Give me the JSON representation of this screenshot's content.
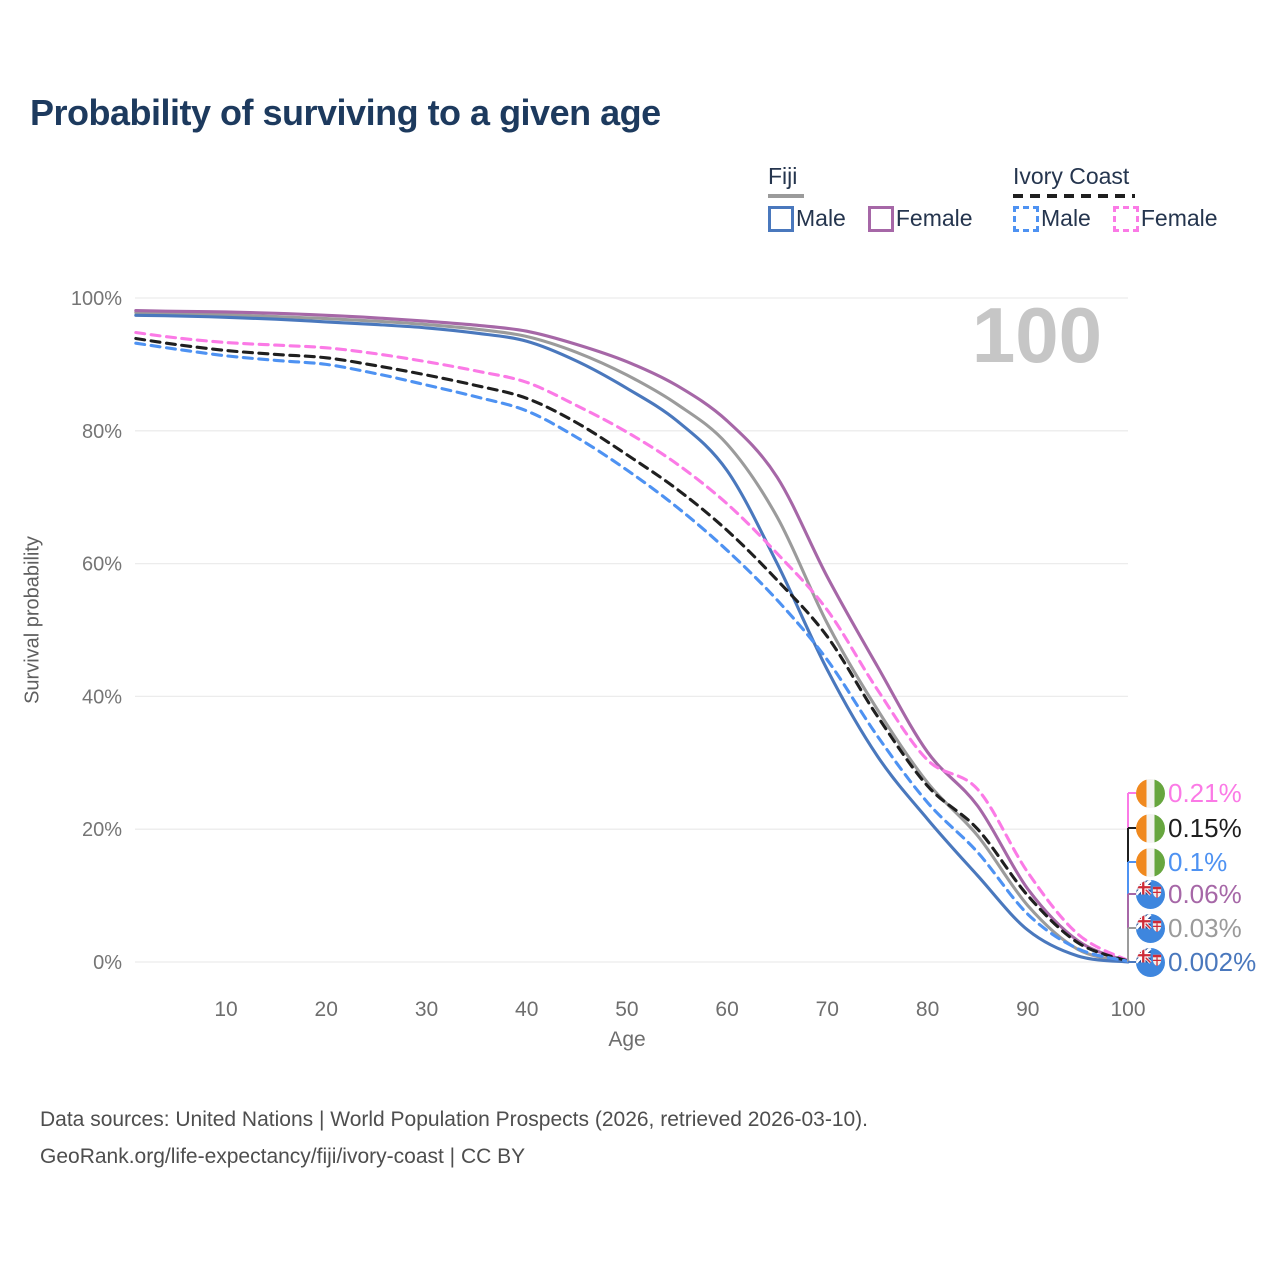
{
  "title": "Probability of surviving to a given age",
  "watermark": "100",
  "legend": {
    "fiji": {
      "label": "Fiji",
      "male": "Male",
      "female": "Female"
    },
    "ivory_coast": {
      "label": "Ivory Coast",
      "male": "Male",
      "female": "Female"
    }
  },
  "end_labels": [
    {
      "country": "Ivory Coast",
      "series": "ic_female",
      "flag": "ivory-coast",
      "value": "0.21%",
      "color": "#fb7ae6"
    },
    {
      "country": "Ivory Coast",
      "series": "ic_all",
      "flag": "ivory-coast",
      "value": "0.15%",
      "color": "#1f1f1f"
    },
    {
      "country": "Ivory Coast",
      "series": "ic_male",
      "flag": "ivory-coast",
      "value": "0.1%",
      "color": "#4e92f2"
    },
    {
      "country": "Fiji",
      "series": "fiji_female",
      "flag": "fiji",
      "value": "0.06%",
      "color": "#a667a7"
    },
    {
      "country": "Fiji",
      "series": "fiji_all",
      "flag": "fiji",
      "value": "0.03%",
      "color": "#9b9b9b"
    },
    {
      "country": "Fiji",
      "series": "fiji_male",
      "flag": "fiji",
      "value": "0.002%",
      "color": "#4a78bd"
    }
  ],
  "footer": {
    "line1": "Data sources: United Nations | World Population Prospects (2026, retrieved 2026-03-10).",
    "line2": "GeoRank.org/life-expectancy/fiji/ivory-coast | CC BY"
  },
  "chart_data": {
    "type": "line",
    "title": "Probability of surviving to a given age",
    "xlabel": "Age",
    "ylabel": "Survival probability",
    "xlim": [
      0,
      100
    ],
    "ylim": [
      0,
      100
    ],
    "grid": "horizontal-only",
    "legend_position": "top-right",
    "hover_age": 100,
    "x_ticks": [
      10,
      20,
      30,
      40,
      50,
      60,
      70,
      80,
      90,
      100
    ],
    "y_ticks": [
      100,
      80,
      60,
      40,
      20,
      0
    ],
    "y_tick_suffix": "%",
    "ages": [
      1,
      5,
      10,
      15,
      20,
      25,
      30,
      35,
      40,
      45,
      50,
      55,
      60,
      65,
      70,
      75,
      80,
      85,
      90,
      95,
      100
    ],
    "series": [
      {
        "id": "fiji_all",
        "name": "Fiji (both sexes)",
        "country": "Fiji",
        "sex": "All",
        "color": "#9b9b9b",
        "dashed": false,
        "values": [
          97.8,
          97.7,
          97.5,
          97.2,
          96.9,
          96.5,
          96.0,
          95.3,
          94.2,
          91.8,
          88.4,
          84.0,
          78.0,
          67.0,
          51.0,
          38.0,
          27.0,
          19.0,
          8.5,
          1.9,
          0.03
        ]
      },
      {
        "id": "fiji_female",
        "name": "Fiji Female",
        "country": "Fiji",
        "sex": "Female",
        "color": "#a667a7",
        "dashed": false,
        "values": [
          98.1,
          98.0,
          97.9,
          97.7,
          97.4,
          97.0,
          96.5,
          95.9,
          95.0,
          93.0,
          90.4,
          86.8,
          81.5,
          73.0,
          58.0,
          44.5,
          31.6,
          23.5,
          11.0,
          3.2,
          0.06
        ]
      },
      {
        "id": "fiji_male",
        "name": "Fiji Male",
        "country": "Fiji",
        "sex": "Male",
        "color": "#4a78bd",
        "dashed": false,
        "values": [
          97.4,
          97.3,
          97.1,
          96.8,
          96.4,
          96.0,
          95.5,
          94.7,
          93.5,
          90.5,
          86.4,
          81.5,
          74.0,
          60.0,
          44.0,
          31.0,
          21.5,
          13.0,
          4.8,
          0.9,
          0.002
        ]
      },
      {
        "id": "ic_female",
        "name": "Ivory Coast Female",
        "country": "Ivory Coast",
        "sex": "Female",
        "color": "#fb7ae6",
        "dashed": true,
        "values": [
          94.8,
          94.0,
          93.3,
          92.9,
          92.5,
          91.6,
          90.4,
          89.0,
          87.3,
          83.8,
          79.8,
          75.0,
          69.0,
          61.5,
          53.0,
          41.0,
          30.4,
          26.0,
          13.5,
          4.2,
          0.21
        ]
      },
      {
        "id": "ic_all",
        "name": "Ivory Coast (both sexes)",
        "country": "Ivory Coast",
        "sex": "All",
        "color": "#1f1f1f",
        "dashed": true,
        "values": [
          93.9,
          93.0,
          92.1,
          91.5,
          91.0,
          89.8,
          88.4,
          86.8,
          84.9,
          81.2,
          76.4,
          71.2,
          65.0,
          57.5,
          49.0,
          37.0,
          26.5,
          20.0,
          10.0,
          2.9,
          0.15
        ]
      },
      {
        "id": "ic_male",
        "name": "Ivory Coast Male",
        "country": "Ivory Coast",
        "sex": "Male",
        "color": "#4e92f2",
        "dashed": true,
        "values": [
          93.2,
          92.3,
          91.3,
          90.6,
          90.0,
          88.6,
          86.9,
          85.1,
          83.0,
          79.0,
          74.1,
          68.5,
          62.0,
          54.5,
          45.5,
          34.0,
          24.0,
          16.5,
          7.2,
          2.0,
          0.1
        ]
      }
    ]
  }
}
